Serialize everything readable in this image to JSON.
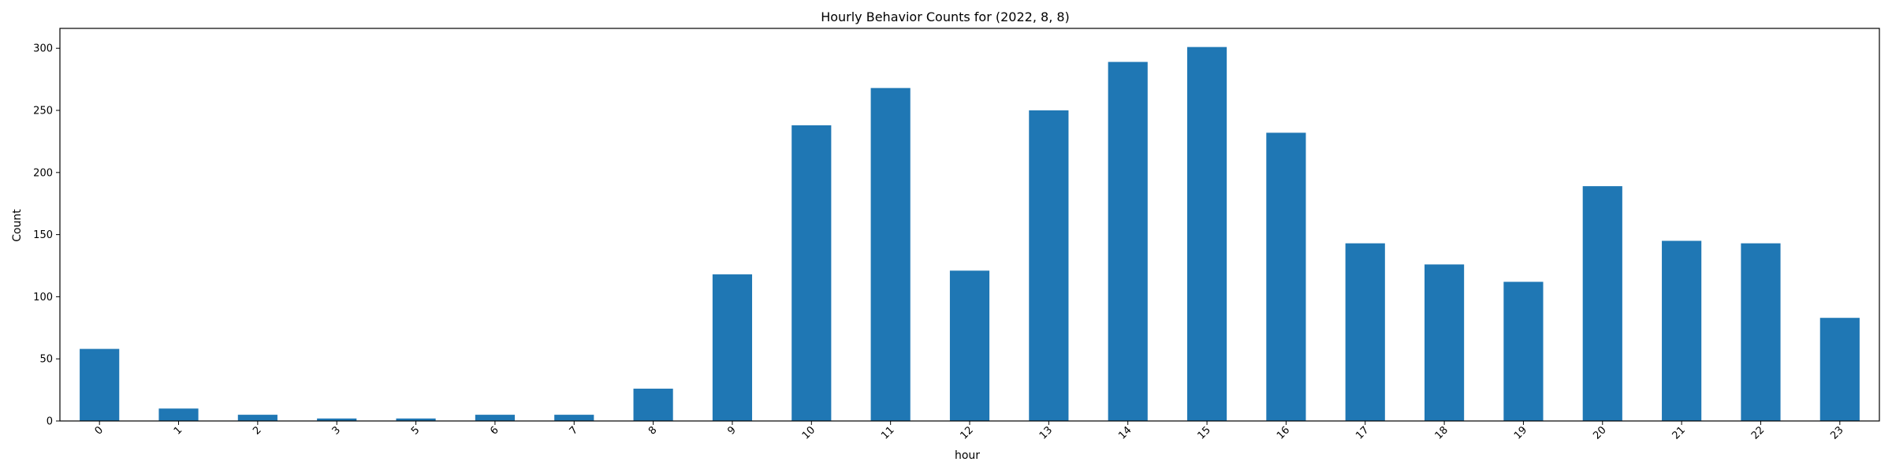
{
  "chart_data": {
    "type": "bar",
    "title": "Hourly Behavior Counts for (2022, 8, 8)",
    "xlabel": "hour",
    "ylabel": "Count",
    "categories": [
      "0",
      "1",
      "2",
      "3",
      "5",
      "6",
      "7",
      "8",
      "9",
      "10",
      "11",
      "12",
      "13",
      "14",
      "15",
      "16",
      "17",
      "18",
      "19",
      "20",
      "21",
      "22",
      "23"
    ],
    "values": [
      58,
      10,
      5,
      2,
      2,
      5,
      5,
      26,
      118,
      238,
      268,
      121,
      250,
      289,
      301,
      232,
      143,
      126,
      112,
      189,
      145,
      143,
      83
    ],
    "ylim": [
      0,
      316
    ],
    "yticks": [
      0,
      50,
      100,
      150,
      200,
      250,
      300
    ],
    "x_tick_rotation": "45 degrees",
    "bar_color": "#1f77b4",
    "grid": false,
    "legend": "none"
  }
}
